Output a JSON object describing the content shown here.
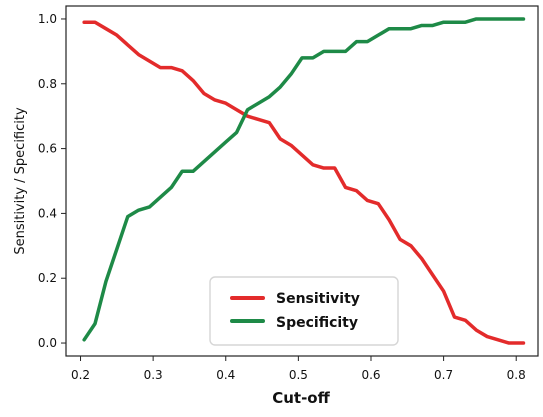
{
  "chart_data": {
    "type": "line",
    "title": "",
    "xlabel": "Cut-off",
    "ylabel": "Sensitivity / Specificity",
    "xlim": [
      0.18,
      0.83
    ],
    "ylim": [
      -0.04,
      1.04
    ],
    "xticks": [
      0.2,
      0.3,
      0.4,
      0.5,
      0.6,
      0.7,
      0.8
    ],
    "xtick_labels": [
      "0.2",
      "0.3",
      "0.4",
      "0.5",
      "0.6",
      "0.7",
      "0.8"
    ],
    "yticks": [
      0.0,
      0.2,
      0.4,
      0.6,
      0.8,
      1.0
    ],
    "ytick_labels": [
      "0.0",
      "0.2",
      "0.4",
      "0.6",
      "0.8",
      "1.0"
    ],
    "grid": false,
    "legend_position": "bottom-center",
    "series": [
      {
        "name": "Sensitivity",
        "color": "#e32b2b",
        "x": [
          0.205,
          0.22,
          0.235,
          0.25,
          0.265,
          0.28,
          0.295,
          0.31,
          0.325,
          0.34,
          0.355,
          0.37,
          0.385,
          0.4,
          0.415,
          0.43,
          0.445,
          0.46,
          0.475,
          0.49,
          0.505,
          0.52,
          0.535,
          0.55,
          0.565,
          0.58,
          0.595,
          0.61,
          0.625,
          0.64,
          0.655,
          0.67,
          0.685,
          0.7,
          0.715,
          0.73,
          0.745,
          0.76,
          0.775,
          0.79,
          0.81
        ],
        "y": [
          0.99,
          0.99,
          0.97,
          0.95,
          0.92,
          0.89,
          0.87,
          0.85,
          0.85,
          0.84,
          0.81,
          0.77,
          0.75,
          0.74,
          0.72,
          0.7,
          0.69,
          0.68,
          0.63,
          0.61,
          0.58,
          0.55,
          0.54,
          0.54,
          0.48,
          0.47,
          0.44,
          0.43,
          0.38,
          0.32,
          0.3,
          0.26,
          0.21,
          0.16,
          0.08,
          0.07,
          0.04,
          0.02,
          0.01,
          0.0,
          0.0
        ]
      },
      {
        "name": "Specificity",
        "color": "#1e8a47",
        "x": [
          0.205,
          0.22,
          0.235,
          0.25,
          0.265,
          0.28,
          0.295,
          0.31,
          0.325,
          0.34,
          0.355,
          0.37,
          0.385,
          0.4,
          0.415,
          0.43,
          0.445,
          0.46,
          0.475,
          0.49,
          0.505,
          0.52,
          0.535,
          0.55,
          0.565,
          0.58,
          0.595,
          0.61,
          0.625,
          0.64,
          0.655,
          0.67,
          0.685,
          0.7,
          0.715,
          0.73,
          0.745,
          0.76,
          0.775,
          0.79,
          0.81
        ],
        "y": [
          0.01,
          0.06,
          0.19,
          0.29,
          0.39,
          0.41,
          0.42,
          0.45,
          0.48,
          0.53,
          0.53,
          0.56,
          0.59,
          0.62,
          0.65,
          0.72,
          0.74,
          0.76,
          0.79,
          0.83,
          0.88,
          0.88,
          0.9,
          0.9,
          0.9,
          0.93,
          0.93,
          0.95,
          0.97,
          0.97,
          0.97,
          0.98,
          0.98,
          0.99,
          0.99,
          0.99,
          1.0,
          1.0,
          1.0,
          1.0,
          1.0
        ]
      }
    ]
  }
}
